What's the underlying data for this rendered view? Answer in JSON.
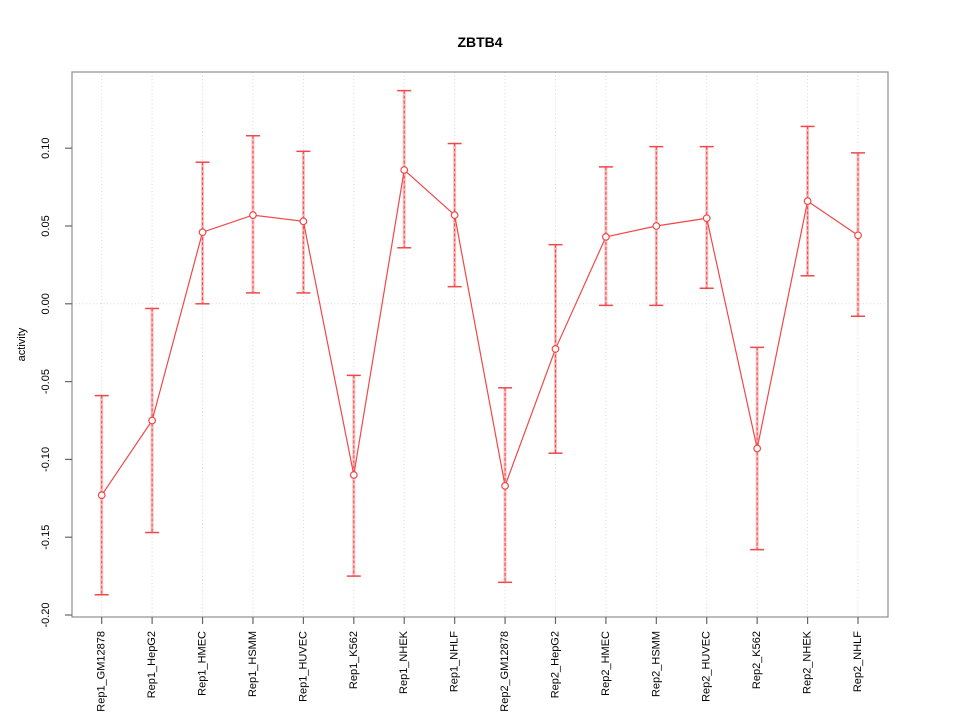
{
  "figure": {
    "title": "ZBTB4"
  },
  "chart_data": {
    "type": "line",
    "title": "ZBTB4",
    "xlabel": "",
    "ylabel": "activity",
    "ylim": [
      -0.2,
      0.148
    ],
    "yticks": [
      0.1,
      0.05,
      0.0,
      -0.05,
      -0.1,
      -0.15,
      -0.2
    ],
    "ytick_labels": [
      "0.10",
      "0.05",
      "0.00",
      "-0.05",
      "-0.10",
      "-0.15",
      "-0.20"
    ],
    "categories": [
      "Rep1_GM12878",
      "Rep1_HepG2",
      "Rep1_HMEC",
      "Rep1_HSMM",
      "Rep1_HUVEC",
      "Rep1_K562",
      "Rep1_NHEK",
      "Rep1_NHLF",
      "Rep2_GM12878",
      "Rep2_HepG2",
      "Rep2_HMEC",
      "Rep2_HSMM",
      "Rep2_HUVEC",
      "Rep2_K562",
      "Rep2_NHEK",
      "Rep2_NHLF"
    ],
    "series": [
      {
        "name": "activity",
        "marker": "open-circle",
        "values": [
          -0.123,
          -0.075,
          0.046,
          0.057,
          0.053,
          -0.11,
          0.086,
          0.057,
          -0.117,
          -0.029,
          0.043,
          0.05,
          0.055,
          -0.093,
          0.066,
          0.044
        ],
        "error_upper": [
          -0.059,
          -0.003,
          0.091,
          0.108,
          0.098,
          -0.046,
          0.137,
          0.103,
          -0.054,
          0.038,
          0.088,
          0.101,
          0.101,
          -0.028,
          0.114,
          0.097
        ],
        "error_lower": [
          -0.187,
          -0.147,
          0.0,
          0.007,
          0.007,
          -0.175,
          0.036,
          0.011,
          -0.179,
          -0.096,
          -0.001,
          -0.001,
          0.01,
          -0.158,
          0.018,
          -0.008
        ]
      }
    ],
    "grid": {
      "vertical_at_each_category": true,
      "horizontal_at_zero": true,
      "style": "dotted"
    },
    "legend": null,
    "colors": {
      "series": "#f04848",
      "series_band": "rgba(240,72,72,0.35)",
      "grid": "#d9d9d9",
      "frame": "#8f8f8f",
      "tick": "#666666",
      "text": "#000000",
      "background": "#ffffff"
    }
  }
}
